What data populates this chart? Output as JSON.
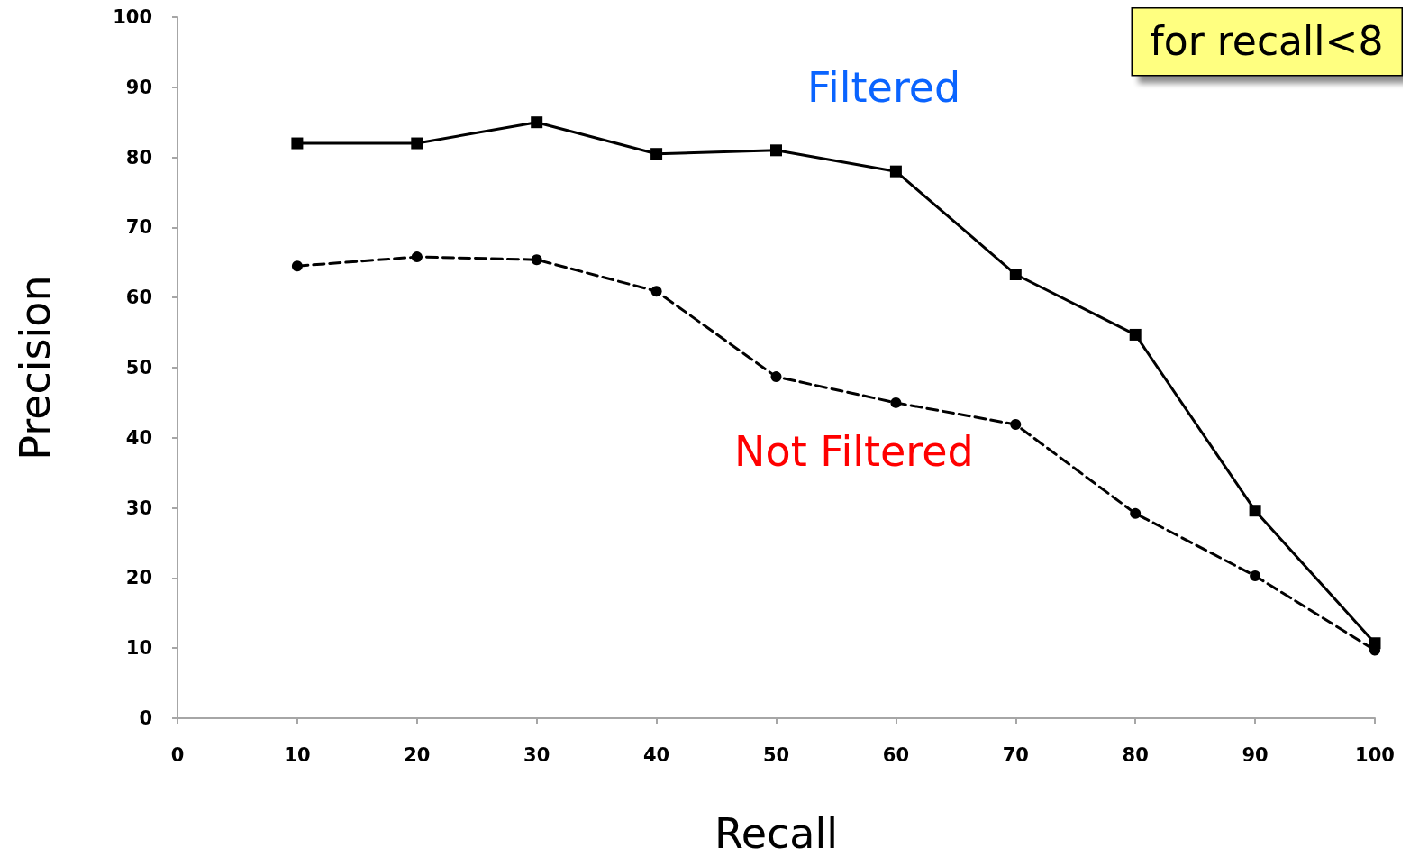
{
  "chart_data": {
    "type": "line",
    "xlabel": "Recall",
    "ylabel": "Precision",
    "x": [
      10,
      20,
      30,
      40,
      50,
      60,
      70,
      80,
      90,
      100
    ],
    "series": [
      {
        "name": "Filtered",
        "color": "#000000",
        "marker": "square",
        "line_style": "solid",
        "values": [
          82,
          82,
          85,
          80.5,
          81,
          78,
          63.3,
          54.7,
          29.6,
          10.7
        ]
      },
      {
        "name": "Not Filtered",
        "color": "#000000",
        "marker": "circle",
        "line_style": "dashed",
        "values": [
          64.5,
          65.8,
          65.4,
          60.9,
          48.7,
          45,
          41.9,
          29.2,
          20.3,
          9.7
        ]
      }
    ],
    "xlim": [
      0,
      100
    ],
    "xticks": [
      0,
      10,
      20,
      30,
      40,
      50,
      60,
      70,
      80,
      90,
      100
    ],
    "ylim": [
      0,
      100
    ],
    "yticks": [
      0,
      10,
      20,
      30,
      40,
      50,
      60,
      70,
      80,
      90,
      100
    ],
    "grid": false,
    "legend": false,
    "annotations": [
      "for recall<8"
    ]
  }
}
